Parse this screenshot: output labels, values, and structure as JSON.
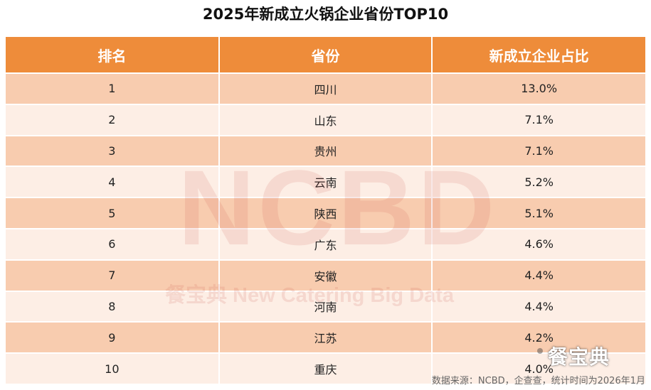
{
  "title": "2025年新成立火锅企业省份TOP10",
  "table": {
    "headers": [
      "排名",
      "省份",
      "新成立企业占比"
    ],
    "rows": [
      [
        "1",
        "四川",
        "13.0%"
      ],
      [
        "2",
        "山东",
        "7.1%"
      ],
      [
        "3",
        "贵州",
        "7.1%"
      ],
      [
        "4",
        "云南",
        "5.2%"
      ],
      [
        "5",
        "陕西",
        "5.1%"
      ],
      [
        "6",
        "广东",
        "4.6%"
      ],
      [
        "7",
        "安徽",
        "4.4%"
      ],
      [
        "8",
        "河南",
        "4.4%"
      ],
      [
        "9",
        "江苏",
        "4.2%"
      ],
      [
        "10",
        "重庆",
        "4.0%"
      ]
    ]
  },
  "watermark": {
    "main": "NCBD",
    "sub": "餐宝典 New Catering Big Data"
  },
  "source": "数据来源：NCBD，企查查，统计时间为2026年1月",
  "logo": "餐宝典",
  "colors": {
    "header_bg": "#ee8c3a",
    "row_odd": "#f8ccaf",
    "row_even": "#fdeee5"
  }
}
